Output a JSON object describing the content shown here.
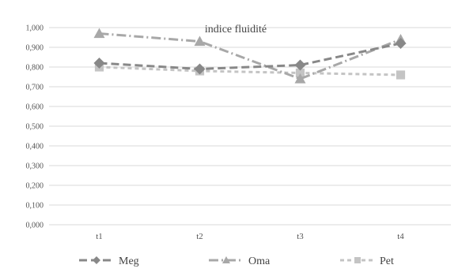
{
  "chart_data": {
    "type": "line",
    "title": "indice fluidité",
    "categories": [
      "t1",
      "t2",
      "t3",
      "t4"
    ],
    "ylim": [
      0,
      1.0
    ],
    "yticks": [
      "0,000",
      "0,100",
      "0,200",
      "0,300",
      "0,400",
      "0,500",
      "0,600",
      "0,700",
      "0,800",
      "0,900",
      "1,000"
    ],
    "grid": true,
    "legend_position": "bottom",
    "series": [
      {
        "name": "Meg",
        "values": [
          0.82,
          0.79,
          0.81,
          0.92
        ],
        "color": "#888888",
        "marker": "diamond",
        "dash": "long-dash"
      },
      {
        "name": "Oma",
        "values": [
          0.97,
          0.93,
          0.74,
          0.94
        ],
        "color": "#a8a8a8",
        "marker": "triangle",
        "dash": "dash-dot"
      },
      {
        "name": "Pet",
        "values": [
          0.8,
          0.78,
          0.77,
          0.76
        ],
        "color": "#c4c4c4",
        "marker": "square",
        "dash": "short-dash"
      }
    ]
  }
}
